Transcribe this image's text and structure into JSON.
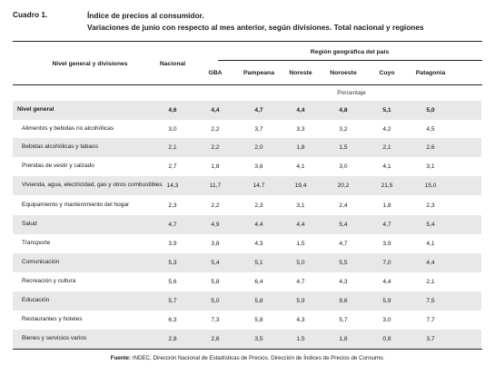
{
  "caption": "Cuadro 1.",
  "title_line1": "Índice de precios al consumidor.",
  "title_line2": "Variaciones de junio con respecto al mes anterior, según divisiones. Total nacional y regiones",
  "headers": {
    "level": "Nivel general y divisiones",
    "national": "Nacional",
    "region_group": "Región geográfica del país",
    "regions": [
      "GBA",
      "Pampeana",
      "Noreste",
      "Noroeste",
      "Cuyo",
      "Patagonia"
    ]
  },
  "unit": "Porcentaje",
  "rows": [
    {
      "label": "Nivel general",
      "values": [
        "4,6",
        "4,4",
        "4,7",
        "4,4",
        "4,8",
        "5,1",
        "5,0"
      ]
    },
    {
      "label": "Alimentos y bebidas no alcohólicas",
      "values": [
        "3,0",
        "2,2",
        "3,7",
        "3,3",
        "3,2",
        "4,2",
        "4,5"
      ]
    },
    {
      "label": "Bebidas alcohólicas y tabaco",
      "values": [
        "2,1",
        "2,2",
        "2,0",
        "1,8",
        "1,5",
        "2,1",
        "2,6"
      ]
    },
    {
      "label": "Prendas de vestir y calzado",
      "values": [
        "2,7",
        "1,8",
        "3,6",
        "4,1",
        "3,0",
        "4,1",
        "3,1"
      ]
    },
    {
      "label": "Vivienda, agua, electricidad, gas y otros combustibles",
      "values": [
        "14,3",
        "11,7",
        "14,7",
        "19,4",
        "20,2",
        "21,5",
        "15,0"
      ]
    },
    {
      "label": "Equipamiento y mantenimiento del hogar",
      "values": [
        "2,3",
        "2,2",
        "2,3",
        "3,1",
        "2,4",
        "1,8",
        "2,3"
      ]
    },
    {
      "label": "Salud",
      "values": [
        "4,7",
        "4,9",
        "4,4",
        "4,4",
        "5,4",
        "4,7",
        "5,4"
      ]
    },
    {
      "label": "Transporte",
      "values": [
        "3,9",
        "3,8",
        "4,3",
        "1,5",
        "4,7",
        "3,9",
        "4,1"
      ]
    },
    {
      "label": "Comunicación",
      "values": [
        "5,3",
        "5,4",
        "5,1",
        "5,0",
        "5,5",
        "7,0",
        "4,4"
      ]
    },
    {
      "label": "Recreación y cultura",
      "values": [
        "5,6",
        "5,8",
        "6,4",
        "4,7",
        "4,3",
        "4,4",
        "2,1"
      ]
    },
    {
      "label": "Educación",
      "values": [
        "5,7",
        "5,0",
        "5,8",
        "5,9",
        "9,6",
        "5,9",
        "7,5"
      ]
    },
    {
      "label": "Restaurantes y hoteles",
      "values": [
        "6,3",
        "7,3",
        "5,8",
        "4,3",
        "5,7",
        "3,0",
        "7,7"
      ]
    },
    {
      "label": "Bienes y servicios varios",
      "values": [
        "2,8",
        "2,6",
        "3,5",
        "1,5",
        "1,8",
        "0,8",
        "3,7"
      ]
    }
  ],
  "source_label": "Fuente:",
  "source_text": "INDEC, Dirección Nacional de Estadísticas de Precios. Dirección de Índices de Precios de Consumo."
}
